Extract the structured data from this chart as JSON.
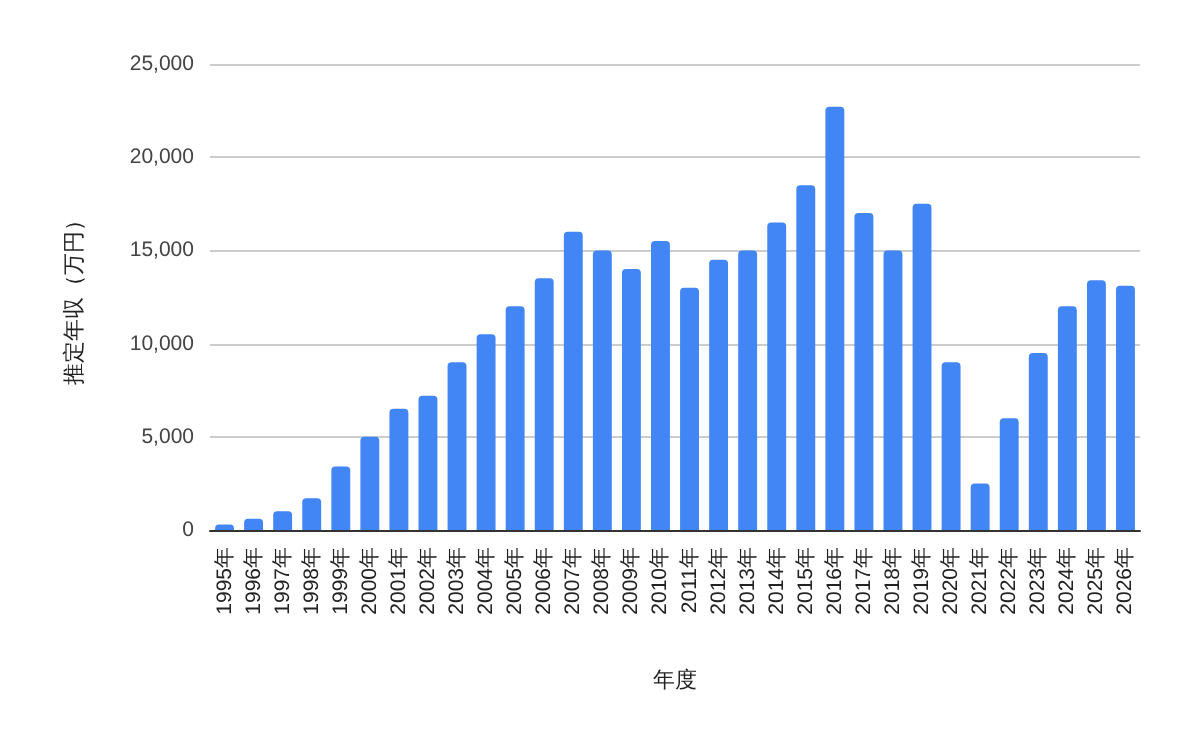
{
  "chart_data": {
    "type": "bar",
    "xlabel": "年度",
    "ylabel": "推定年収（万円）",
    "categories": [
      "1995年",
      "1996年",
      "1997年",
      "1998年",
      "1999年",
      "2000年",
      "2001年",
      "2002年",
      "2003年",
      "2004年",
      "2005年",
      "2006年",
      "2007年",
      "2008年",
      "2009年",
      "2010年",
      "2011年",
      "2012年",
      "2013年",
      "2014年",
      "2015年",
      "2016年",
      "2017年",
      "2018年",
      "2019年",
      "2020年",
      "2021年",
      "2022年",
      "2023年",
      "2024年",
      "2025年",
      "2026年"
    ],
    "values": [
      300,
      600,
      1000,
      1700,
      3400,
      5000,
      6500,
      7200,
      9000,
      10500,
      12000,
      13500,
      16000,
      15000,
      14000,
      15500,
      13000,
      14500,
      15000,
      16500,
      18500,
      22700,
      17000,
      15000,
      17500,
      9000,
      2500,
      6000,
      9500,
      12000,
      13400,
      13100
    ],
    "color": "#4285f4",
    "ylim": [
      0,
      25000
    ],
    "yticks": [
      {
        "value": 0,
        "label": "0"
      },
      {
        "value": 5000,
        "label": "5,000"
      },
      {
        "value": 10000,
        "label": "10,000"
      },
      {
        "value": 15000,
        "label": "15,000"
      },
      {
        "value": 20000,
        "label": "20,000"
      },
      {
        "value": 25000,
        "label": "25,000"
      }
    ],
    "grid": "y"
  }
}
